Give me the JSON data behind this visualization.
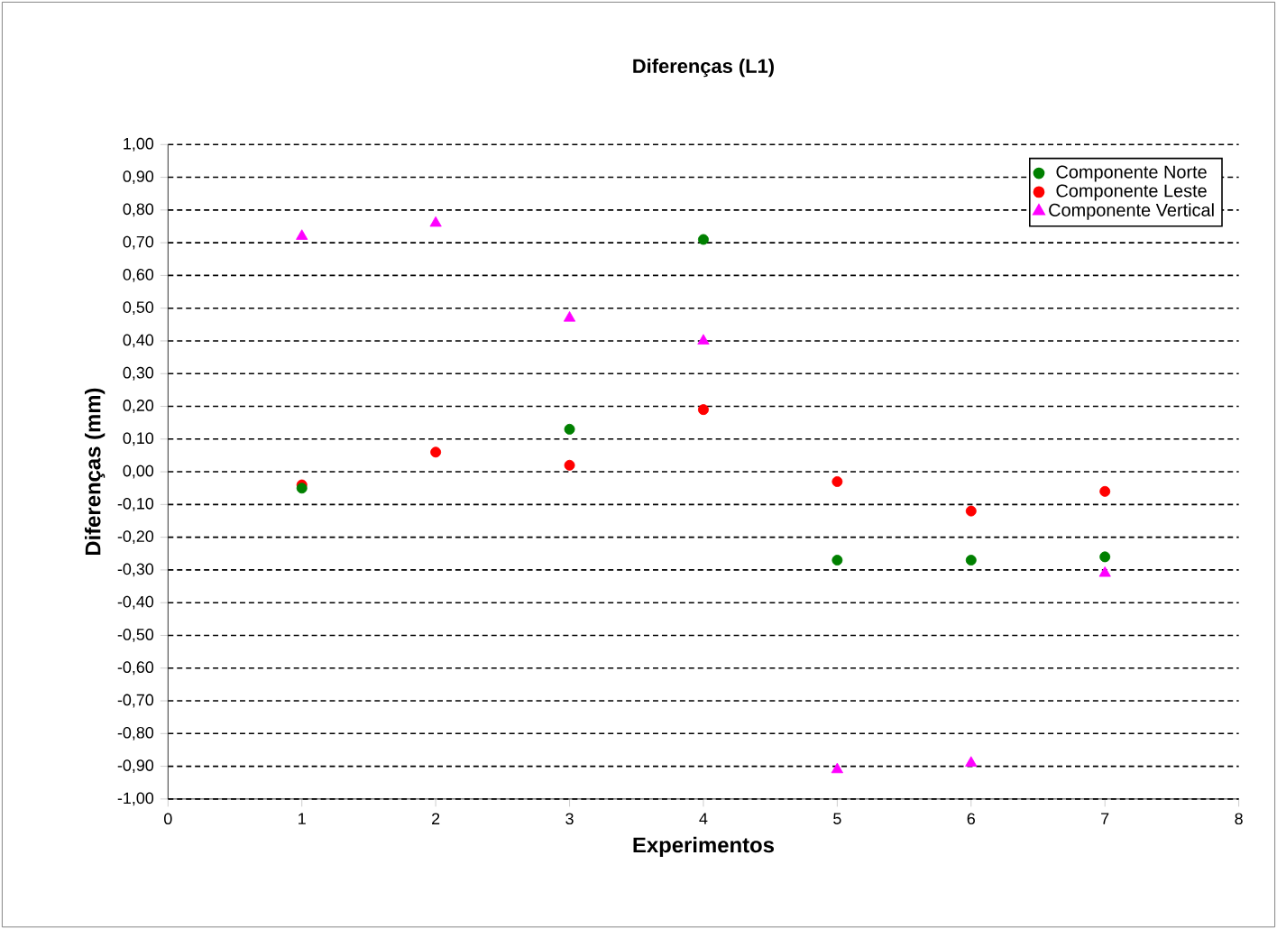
{
  "chart_data": {
    "type": "scatter",
    "title": "Diferenças (L1)",
    "xlabel": "Experimentos",
    "ylabel": "Diferenças  (mm)",
    "xlim": [
      0,
      8
    ],
    "xticks": [
      0,
      1,
      2,
      3,
      4,
      5,
      6,
      7,
      8
    ],
    "ylim": [
      -1,
      1
    ],
    "yticks": [
      {
        "value": -1,
        "label": "-1,00"
      },
      {
        "value": -0.9,
        "label": "-0,90"
      },
      {
        "value": -0.8,
        "label": "-0,80"
      },
      {
        "value": -0.7,
        "label": "-0,70"
      },
      {
        "value": -0.6,
        "label": "-0,60"
      },
      {
        "value": -0.5,
        "label": "-0,50"
      },
      {
        "value": -0.4,
        "label": "-0,40"
      },
      {
        "value": -0.3,
        "label": "-0,30"
      },
      {
        "value": -0.2,
        "label": "-0,20"
      },
      {
        "value": -0.1,
        "label": "-0,10"
      },
      {
        "value": 0,
        "label": "0,00"
      },
      {
        "value": 0.1,
        "label": "0,10"
      },
      {
        "value": 0.2,
        "label": "0,20"
      },
      {
        "value": 0.3,
        "label": "0,30"
      },
      {
        "value": 0.4,
        "label": "0,40"
      },
      {
        "value": 0.5,
        "label": "0,50"
      },
      {
        "value": 0.6,
        "label": "0,60"
      },
      {
        "value": 0.7,
        "label": "0,70"
      },
      {
        "value": 0.8,
        "label": "0,80"
      },
      {
        "value": 0.9,
        "label": "0,90"
      },
      {
        "value": 1,
        "label": "1,00"
      }
    ],
    "grid": "y",
    "legend": "top right",
    "series": [
      {
        "name": "Componente Norte",
        "color": "#008000",
        "marker": "circle",
        "x": [
          1,
          3,
          4,
          5,
          6,
          7
        ],
        "values": [
          -0.05,
          0.13,
          0.71,
          -0.27,
          -0.27,
          -0.26
        ]
      },
      {
        "name": "Componente Leste",
        "color": "#ff0000",
        "marker": "circle",
        "x": [
          1,
          2,
          3,
          4,
          5,
          6,
          7
        ],
        "values": [
          -0.04,
          0.06,
          0.02,
          0.19,
          -0.03,
          -0.12,
          -0.06
        ]
      },
      {
        "name": "Componente Vertical",
        "color": "#ff00ff",
        "marker": "triangle",
        "x": [
          1,
          2,
          3,
          4,
          5,
          6,
          7
        ],
        "values": [
          0.72,
          0.76,
          0.47,
          0.4,
          -0.91,
          -0.89,
          -0.31
        ]
      }
    ]
  }
}
